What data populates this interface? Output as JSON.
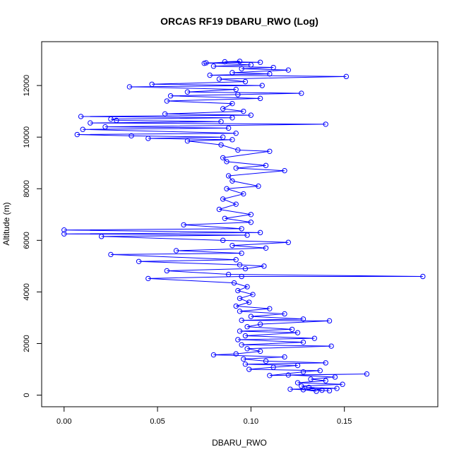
{
  "chart_data": {
    "type": "scatter",
    "title": "ORCAS RF19 DBARU_RWO (Log)",
    "xlabel": "DBARU_RWO",
    "ylabel": "Altitude (m)",
    "xlim": [
      -0.012,
      0.2
    ],
    "ylim": [
      -450,
      13700
    ],
    "x_ticks": [
      0.0,
      0.05,
      0.1,
      0.15
    ],
    "x_tick_labels": [
      "0.00",
      "0.05",
      "0.10",
      "0.15"
    ],
    "y_ticks": [
      0,
      2000,
      4000,
      6000,
      8000,
      10000,
      12000
    ],
    "y_tick_labels": [
      "0",
      "2000",
      "4000",
      "6000",
      "8000",
      "10000",
      "12000"
    ],
    "grid": false,
    "legend": "none",
    "marker": "open-circle",
    "line": true,
    "color": "#0000ff",
    "series": [
      {
        "points": [
          [
            0.135,
            150
          ],
          [
            0.128,
            210
          ],
          [
            0.142,
            170
          ],
          [
            0.121,
            230
          ],
          [
            0.146,
            260
          ],
          [
            0.131,
            300
          ],
          [
            0.138,
            190
          ],
          [
            0.127,
            350
          ],
          [
            0.149,
            420
          ],
          [
            0.125,
            480
          ],
          [
            0.14,
            560
          ],
          [
            0.132,
            620
          ],
          [
            0.145,
            700
          ],
          [
            0.12,
            780
          ],
          [
            0.162,
            820
          ],
          [
            0.11,
            760
          ],
          [
            0.128,
            900
          ],
          [
            0.137,
            950
          ],
          [
            0.099,
            1000
          ],
          [
            0.112,
            1080
          ],
          [
            0.125,
            1150
          ],
          [
            0.097,
            1200
          ],
          [
            0.14,
            1250
          ],
          [
            0.108,
            1320
          ],
          [
            0.096,
            1400
          ],
          [
            0.118,
            1480
          ],
          [
            0.08,
            1560
          ],
          [
            0.092,
            1600
          ],
          [
            0.105,
            1700
          ],
          [
            0.098,
            1800
          ],
          [
            0.143,
            1900
          ],
          [
            0.095,
            1950
          ],
          [
            0.128,
            2050
          ],
          [
            0.093,
            2150
          ],
          [
            0.134,
            2200
          ],
          [
            0.097,
            2300
          ],
          [
            0.125,
            2420
          ],
          [
            0.094,
            2480
          ],
          [
            0.122,
            2550
          ],
          [
            0.098,
            2650
          ],
          [
            0.105,
            2750
          ],
          [
            0.142,
            2880
          ],
          [
            0.095,
            2900
          ],
          [
            0.128,
            2950
          ],
          [
            0.1,
            3050
          ],
          [
            0.118,
            3150
          ],
          [
            0.094,
            3250
          ],
          [
            0.11,
            3350
          ],
          [
            0.092,
            3450
          ],
          [
            0.099,
            3600
          ],
          [
            0.094,
            3750
          ],
          [
            0.101,
            3900
          ],
          [
            0.093,
            4050
          ],
          [
            0.098,
            4200
          ],
          [
            0.091,
            4350
          ],
          [
            0.045,
            4520
          ],
          [
            0.095,
            4600
          ],
          [
            0.192,
            4600
          ],
          [
            0.088,
            4680
          ],
          [
            0.055,
            4820
          ],
          [
            0.097,
            4900
          ],
          [
            0.107,
            5000
          ],
          [
            0.094,
            5050
          ],
          [
            0.04,
            5180
          ],
          [
            0.092,
            5250
          ],
          [
            0.025,
            5450
          ],
          [
            0.095,
            5500
          ],
          [
            0.06,
            5600
          ],
          [
            0.108,
            5700
          ],
          [
            0.09,
            5800
          ],
          [
            0.12,
            5920
          ],
          [
            0.085,
            6000
          ],
          [
            0.02,
            6150
          ],
          [
            0.098,
            6200
          ],
          [
            0.0,
            6250
          ],
          [
            0.105,
            6300
          ],
          [
            0.0,
            6400
          ],
          [
            0.095,
            6450
          ],
          [
            0.064,
            6600
          ],
          [
            0.1,
            6700
          ],
          [
            0.086,
            6850
          ],
          [
            0.1,
            7000
          ],
          [
            0.083,
            7200
          ],
          [
            0.092,
            7400
          ],
          [
            0.085,
            7600
          ],
          [
            0.096,
            7800
          ],
          [
            0.087,
            8000
          ],
          [
            0.104,
            8100
          ],
          [
            0.09,
            8300
          ],
          [
            0.088,
            8500
          ],
          [
            0.118,
            8700
          ],
          [
            0.092,
            8800
          ],
          [
            0.108,
            8900
          ],
          [
            0.087,
            9050
          ],
          [
            0.085,
            9200
          ],
          [
            0.11,
            9450
          ],
          [
            0.093,
            9500
          ],
          [
            0.084,
            9700
          ],
          [
            0.066,
            9850
          ],
          [
            0.09,
            9900
          ],
          [
            0.045,
            9950
          ],
          [
            0.085,
            10000
          ],
          [
            0.036,
            10050
          ],
          [
            0.007,
            10100
          ],
          [
            0.092,
            10150
          ],
          [
            0.01,
            10300
          ],
          [
            0.088,
            10350
          ],
          [
            0.022,
            10400
          ],
          [
            0.14,
            10500
          ],
          [
            0.014,
            10550
          ],
          [
            0.084,
            10600
          ],
          [
            0.028,
            10650
          ],
          [
            0.025,
            10700
          ],
          [
            0.09,
            10750
          ],
          [
            0.009,
            10800
          ],
          [
            0.1,
            10850
          ],
          [
            0.054,
            10900
          ],
          [
            0.096,
            11000
          ],
          [
            0.085,
            11100
          ],
          [
            0.09,
            11300
          ],
          [
            0.055,
            11400
          ],
          [
            0.105,
            11500
          ],
          [
            0.057,
            11600
          ],
          [
            0.093,
            11650
          ],
          [
            0.127,
            11700
          ],
          [
            0.066,
            11750
          ],
          [
            0.092,
            11850
          ],
          [
            0.035,
            11950
          ],
          [
            0.106,
            12000
          ],
          [
            0.047,
            12050
          ],
          [
            0.097,
            12150
          ],
          [
            0.083,
            12250
          ],
          [
            0.151,
            12350
          ],
          [
            0.078,
            12400
          ],
          [
            0.11,
            12450
          ],
          [
            0.09,
            12500
          ],
          [
            0.12,
            12600
          ],
          [
            0.095,
            12650
          ],
          [
            0.112,
            12700
          ],
          [
            0.08,
            12750
          ],
          [
            0.1,
            12800
          ],
          [
            0.076,
            12880
          ],
          [
            0.105,
            12900
          ],
          [
            0.086,
            12920
          ],
          [
            0.094,
            12940
          ],
          [
            0.075,
            12860
          ]
        ]
      }
    ]
  }
}
